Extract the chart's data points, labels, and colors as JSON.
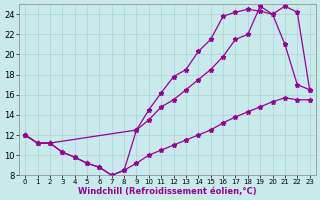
{
  "xlabel": "Windchill (Refroidissement éolien,°C)",
  "bg_color": "#c8eaea",
  "line_color": "#990099",
  "grid_color": "#aad4d4",
  "xlim": [
    -0.5,
    23.5
  ],
  "ylim": [
    8,
    25
  ],
  "xticks": [
    0,
    1,
    2,
    3,
    4,
    5,
    6,
    7,
    8,
    9,
    10,
    11,
    12,
    13,
    14,
    15,
    16,
    17,
    18,
    19,
    20,
    21,
    22,
    23
  ],
  "yticks": [
    8,
    10,
    12,
    14,
    16,
    18,
    20,
    22,
    24
  ],
  "line1_x": [
    0,
    1,
    2,
    3,
    4,
    5,
    6,
    7,
    8,
    9,
    10,
    11,
    12,
    13,
    14,
    15,
    16,
    17,
    18,
    19,
    20,
    21,
    22,
    23
  ],
  "line1_y": [
    12,
    11.2,
    11.2,
    10.3,
    9.8,
    9.2,
    8.8,
    8.0,
    8.5,
    9.2,
    10.0,
    10.5,
    11.0,
    11.5,
    12.0,
    12.5,
    13.2,
    13.8,
    14.3,
    14.8,
    15.3,
    15.7,
    15.5,
    15.5
  ],
  "line2_x": [
    0,
    1,
    2,
    3,
    4,
    5,
    6,
    7,
    8,
    9,
    10,
    11,
    12,
    13,
    14,
    15,
    16,
    17,
    18,
    19,
    20,
    21,
    22,
    23
  ],
  "line2_y": [
    12,
    11.2,
    11.2,
    10.3,
    9.8,
    9.2,
    8.8,
    8.0,
    8.5,
    12.5,
    14.5,
    16.2,
    17.8,
    18.5,
    20.3,
    21.5,
    23.8,
    24.2,
    24.5,
    24.3,
    24.0,
    21.0,
    17.0,
    16.5
  ],
  "line3_x": [
    0,
    1,
    2,
    9,
    10,
    11,
    12,
    13,
    14,
    15,
    16,
    17,
    18,
    19,
    20,
    21,
    22,
    23
  ],
  "line3_y": [
    12,
    11.2,
    11.2,
    12.5,
    13.5,
    14.8,
    15.5,
    16.5,
    17.5,
    18.5,
    19.8,
    21.5,
    22.0,
    24.8,
    24.0,
    24.8,
    24.2,
    16.5
  ]
}
